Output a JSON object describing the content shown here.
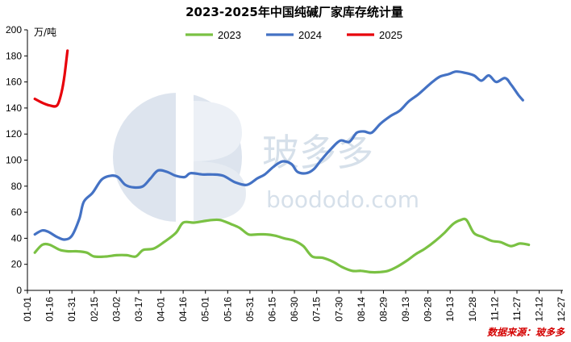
{
  "chart_data": {
    "type": "line",
    "title": "2023-2025年中国纯碱厂家库存统计量",
    "y_unit": "万/吨",
    "ylim": [
      0,
      200
    ],
    "y_ticks": [
      0,
      20,
      40,
      60,
      80,
      100,
      120,
      140,
      160,
      180,
      200
    ],
    "x_ticks": [
      "01-01",
      "01-16",
      "01-31",
      "02-15",
      "03-02",
      "03-17",
      "04-01",
      "04-16",
      "05-01",
      "05-16",
      "05-31",
      "06-15",
      "06-30",
      "07-15",
      "07-30",
      "08-14",
      "08-29",
      "09-13",
      "09-28",
      "10-13",
      "10-28",
      "11-12",
      "11-27",
      "12-12",
      "12-27"
    ],
    "grid": false,
    "legend_position": "top",
    "source": "数据来源：玻多多",
    "watermark": "玻多多 boododo.com",
    "series": [
      {
        "name": "2023",
        "color": "#7ac143",
        "points": [
          [
            5,
            29
          ],
          [
            10,
            35
          ],
          [
            15,
            35
          ],
          [
            22,
            31
          ],
          [
            28,
            30
          ],
          [
            34,
            30
          ],
          [
            40,
            29
          ],
          [
            45,
            26
          ],
          [
            53,
            26
          ],
          [
            60,
            27
          ],
          [
            67,
            27
          ],
          [
            73,
            26
          ],
          [
            78,
            31
          ],
          [
            85,
            32
          ],
          [
            92,
            37
          ],
          [
            100,
            44
          ],
          [
            105,
            52
          ],
          [
            112,
            52
          ],
          [
            118,
            53
          ],
          [
            124,
            54
          ],
          [
            130,
            54
          ],
          [
            137,
            51
          ],
          [
            143,
            48
          ],
          [
            149,
            43
          ],
          [
            155,
            43
          ],
          [
            161,
            43
          ],
          [
            167,
            42
          ],
          [
            173,
            40
          ],
          [
            180,
            38
          ],
          [
            186,
            34
          ],
          [
            192,
            26
          ],
          [
            199,
            25
          ],
          [
            206,
            22
          ],
          [
            212,
            18
          ],
          [
            219,
            15
          ],
          [
            225,
            15
          ],
          [
            231,
            14
          ],
          [
            237,
            14
          ],
          [
            243,
            15
          ],
          [
            249,
            18
          ],
          [
            256,
            23
          ],
          [
            262,
            28
          ],
          [
            268,
            32
          ],
          [
            275,
            38
          ],
          [
            281,
            44
          ],
          [
            287,
            51
          ],
          [
            292,
            54
          ],
          [
            296,
            54
          ],
          [
            301,
            44
          ],
          [
            307,
            41
          ],
          [
            313,
            38
          ],
          [
            319,
            37
          ],
          [
            326,
            34
          ],
          [
            332,
            36
          ],
          [
            338,
            35
          ]
        ]
      },
      {
        "name": "2024",
        "color": "#4472c4",
        "points": [
          [
            5,
            43
          ],
          [
            10,
            46
          ],
          [
            14,
            45
          ],
          [
            20,
            41
          ],
          [
            25,
            39
          ],
          [
            30,
            42
          ],
          [
            35,
            55
          ],
          [
            38,
            68
          ],
          [
            44,
            75
          ],
          [
            50,
            85
          ],
          [
            56,
            88
          ],
          [
            61,
            87
          ],
          [
            66,
            81
          ],
          [
            72,
            79
          ],
          [
            78,
            80
          ],
          [
            83,
            86
          ],
          [
            88,
            92
          ],
          [
            94,
            91
          ],
          [
            100,
            88
          ],
          [
            106,
            87
          ],
          [
            110,
            90
          ],
          [
            118,
            89
          ],
          [
            125,
            89
          ],
          [
            132,
            88
          ],
          [
            140,
            83
          ],
          [
            148,
            81
          ],
          [
            155,
            86
          ],
          [
            160,
            89
          ],
          [
            166,
            95
          ],
          [
            172,
            99
          ],
          [
            178,
            97
          ],
          [
            182,
            91
          ],
          [
            188,
            90
          ],
          [
            193,
            93
          ],
          [
            198,
            100
          ],
          [
            205,
            109
          ],
          [
            211,
            115
          ],
          [
            217,
            114
          ],
          [
            222,
            121
          ],
          [
            227,
            122
          ],
          [
            232,
            121
          ],
          [
            238,
            128
          ],
          [
            245,
            134
          ],
          [
            251,
            138
          ],
          [
            257,
            145
          ],
          [
            263,
            150
          ],
          [
            268,
            155
          ],
          [
            273,
            160
          ],
          [
            278,
            164
          ],
          [
            284,
            166
          ],
          [
            289,
            168
          ],
          [
            295,
            167
          ],
          [
            301,
            165
          ],
          [
            306,
            161
          ],
          [
            311,
            165
          ],
          [
            316,
            160
          ],
          [
            322,
            163
          ],
          [
            326,
            158
          ],
          [
            331,
            150
          ],
          [
            334,
            146
          ]
        ]
      },
      {
        "name": "2025",
        "color": "#e8000b",
        "points": [
          [
            5,
            147
          ],
          [
            10,
            144
          ],
          [
            15,
            142
          ],
          [
            20,
            142
          ],
          [
            23,
            152
          ],
          [
            25,
            165
          ],
          [
            27,
            184
          ]
        ]
      }
    ]
  }
}
